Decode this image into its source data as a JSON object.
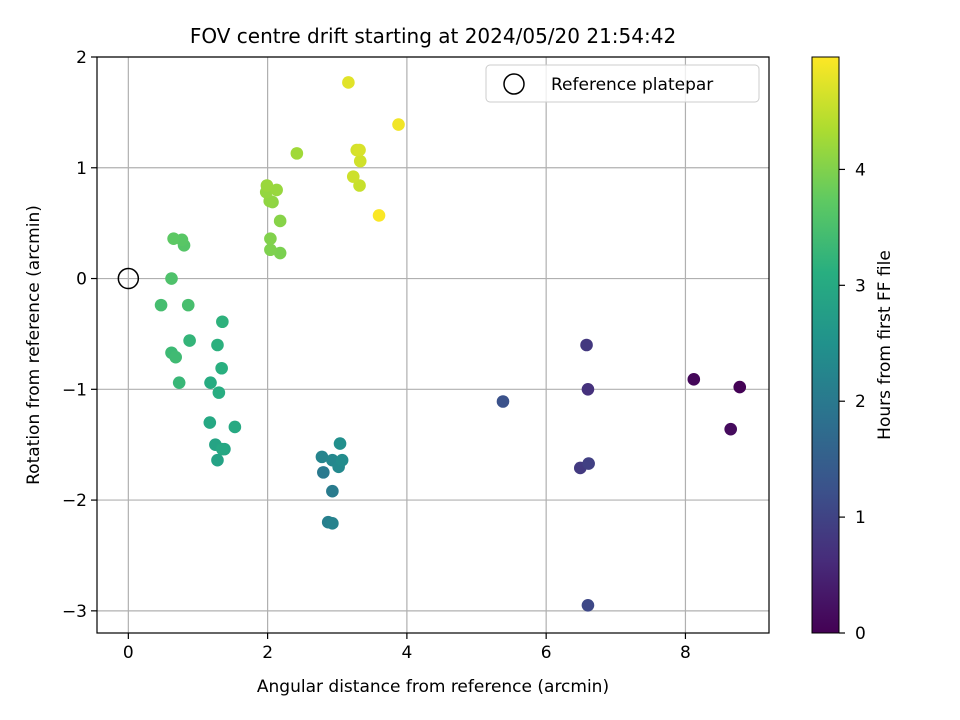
{
  "chart_data": {
    "type": "scatter",
    "title": "FOV centre drift starting at 2024/05/20 21:54:42",
    "xlabel": "Angular distance from reference (arcmin)",
    "ylabel": "Rotation from reference (arcmin)",
    "xlim": [
      -0.45,
      9.2
    ],
    "ylim": [
      -3.2,
      2.0
    ],
    "xticks": [
      0,
      2,
      4,
      6,
      8
    ],
    "yticks": [
      -3,
      -2,
      -1,
      0,
      1,
      2
    ],
    "xtick_labels": [
      "0",
      "2",
      "4",
      "6",
      "8"
    ],
    "ytick_labels": [
      "−3",
      "−2",
      "−1",
      "0",
      "1",
      "2"
    ],
    "grid": true,
    "legend": {
      "position": "top-right",
      "entries": [
        "Reference platepar"
      ]
    },
    "reference_point": {
      "name": "Reference platepar",
      "x": 0,
      "y": 0
    },
    "colorbar": {
      "label": "Hours from first FF file",
      "colormap": "viridis",
      "range": [
        0,
        4.97
      ],
      "ticks": [
        0,
        1,
        2,
        3,
        4
      ],
      "tick_labels": [
        "0",
        "1",
        "2",
        "3",
        "4"
      ]
    },
    "points": [
      {
        "x": 8.78,
        "y": -0.98,
        "c": 0.02
      },
      {
        "x": 8.12,
        "y": -0.91,
        "c": 0.08
      },
      {
        "x": 8.65,
        "y": -1.36,
        "c": 0.15
      },
      {
        "x": 6.6,
        "y": -1.0,
        "c": 0.7
      },
      {
        "x": 6.58,
        "y": -0.6,
        "c": 0.82
      },
      {
        "x": 6.49,
        "y": -1.71,
        "c": 0.85
      },
      {
        "x": 6.61,
        "y": -1.67,
        "c": 0.95
      },
      {
        "x": 6.6,
        "y": -2.95,
        "c": 1.08
      },
      {
        "x": 5.38,
        "y": -1.11,
        "c": 1.25
      },
      {
        "x": 2.8,
        "y": -1.75,
        "c": 2.0
      },
      {
        "x": 2.93,
        "y": -1.92,
        "c": 2.05
      },
      {
        "x": 2.87,
        "y": -2.2,
        "c": 2.12
      },
      {
        "x": 2.93,
        "y": -2.21,
        "c": 2.18
      },
      {
        "x": 2.78,
        "y": -1.61,
        "c": 2.22
      },
      {
        "x": 2.93,
        "y": -1.64,
        "c": 2.28
      },
      {
        "x": 3.02,
        "y": -1.7,
        "c": 2.32
      },
      {
        "x": 3.07,
        "y": -1.64,
        "c": 2.38
      },
      {
        "x": 3.04,
        "y": -1.49,
        "c": 2.45
      },
      {
        "x": 1.28,
        "y": -1.64,
        "c": 2.85
      },
      {
        "x": 1.25,
        "y": -1.5,
        "c": 2.88
      },
      {
        "x": 1.38,
        "y": -1.54,
        "c": 2.92
      },
      {
        "x": 1.35,
        "y": -1.54,
        "c": 2.95
      },
      {
        "x": 1.17,
        "y": -1.3,
        "c": 2.97
      },
      {
        "x": 1.53,
        "y": -1.34,
        "c": 3.0
      },
      {
        "x": 1.18,
        "y": -0.94,
        "c": 3.05
      },
      {
        "x": 1.3,
        "y": -1.03,
        "c": 3.08
      },
      {
        "x": 1.34,
        "y": -0.81,
        "c": 3.12
      },
      {
        "x": 1.28,
        "y": -0.6,
        "c": 3.15
      },
      {
        "x": 1.35,
        "y": -0.39,
        "c": 3.18
      },
      {
        "x": 0.88,
        "y": -0.56,
        "c": 3.25
      },
      {
        "x": 0.73,
        "y": -0.94,
        "c": 3.3
      },
      {
        "x": 0.62,
        "y": -0.67,
        "c": 3.35
      },
      {
        "x": 0.68,
        "y": -0.71,
        "c": 3.38
      },
      {
        "x": 0.47,
        "y": -0.24,
        "c": 3.45
      },
      {
        "x": 0.86,
        "y": -0.24,
        "c": 3.48
      },
      {
        "x": 0.62,
        "y": 0.0,
        "c": 3.55
      },
      {
        "x": 0.8,
        "y": 0.3,
        "c": 3.62
      },
      {
        "x": 0.77,
        "y": 0.35,
        "c": 3.66
      },
      {
        "x": 0.65,
        "y": 0.36,
        "c": 3.7
      },
      {
        "x": 2.18,
        "y": 0.23,
        "c": 3.95
      },
      {
        "x": 2.04,
        "y": 0.26,
        "c": 3.98
      },
      {
        "x": 2.04,
        "y": 0.36,
        "c": 4.0
      },
      {
        "x": 2.18,
        "y": 0.52,
        "c": 4.05
      },
      {
        "x": 2.07,
        "y": 0.69,
        "c": 4.1
      },
      {
        "x": 2.03,
        "y": 0.7,
        "c": 4.12
      },
      {
        "x": 1.98,
        "y": 0.78,
        "c": 4.15
      },
      {
        "x": 2.13,
        "y": 0.8,
        "c": 4.18
      },
      {
        "x": 1.99,
        "y": 0.84,
        "c": 4.2
      },
      {
        "x": 2.42,
        "y": 1.13,
        "c": 4.25
      },
      {
        "x": 3.32,
        "y": 0.84,
        "c": 4.55
      },
      {
        "x": 3.23,
        "y": 0.92,
        "c": 4.6
      },
      {
        "x": 3.33,
        "y": 1.06,
        "c": 4.62
      },
      {
        "x": 3.28,
        "y": 1.16,
        "c": 4.65
      },
      {
        "x": 3.32,
        "y": 1.16,
        "c": 4.68
      },
      {
        "x": 3.16,
        "y": 1.77,
        "c": 4.75
      },
      {
        "x": 3.88,
        "y": 1.39,
        "c": 4.88
      },
      {
        "x": 3.6,
        "y": 0.57,
        "c": 4.95
      }
    ]
  }
}
